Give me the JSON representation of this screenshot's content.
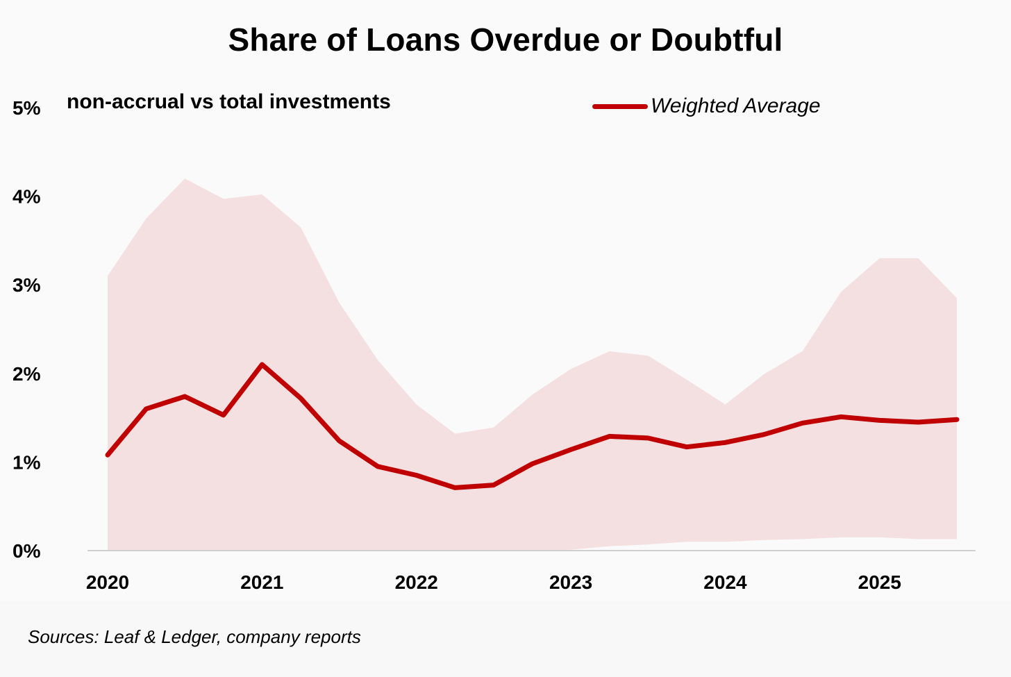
{
  "chart_data": {
    "type": "area",
    "title": "Share of Loans Overdue or Doubtful",
    "subtitle": "non-accrual vs total investments",
    "ylim": [
      0,
      5
    ],
    "y_ticks": [
      "0%",
      "1%",
      "2%",
      "3%",
      "4%",
      "5%"
    ],
    "x_ticks": [
      "2020",
      "2021",
      "2022",
      "2023",
      "2024",
      "2025"
    ],
    "x": [
      2020.0,
      2020.25,
      2020.5,
      2020.75,
      2021.0,
      2021.25,
      2021.5,
      2021.75,
      2022.0,
      2022.25,
      2022.5,
      2022.75,
      2023.0,
      2023.25,
      2023.5,
      2023.75,
      2024.0,
      2024.25,
      2024.5,
      2024.75,
      2025.0,
      2025.25,
      2025.5
    ],
    "series": [
      {
        "name": "Weighted Average",
        "kind": "line",
        "color": "#c00000",
        "values": [
          1.08,
          1.6,
          1.74,
          1.53,
          2.1,
          1.72,
          1.24,
          0.95,
          0.85,
          0.71,
          0.74,
          0.98,
          1.14,
          1.29,
          1.27,
          1.17,
          1.22,
          1.31,
          1.44,
          1.51,
          1.47,
          1.45,
          1.48
        ]
      },
      {
        "kind": "band",
        "color": "#f4e0e1",
        "upper": [
          3.1,
          3.75,
          4.2,
          3.97,
          4.02,
          3.65,
          2.8,
          2.15,
          1.65,
          1.32,
          1.39,
          1.76,
          2.05,
          2.25,
          2.2,
          1.93,
          1.65,
          1.99,
          2.25,
          2.92,
          3.3,
          3.3,
          2.85
        ],
        "lower": [
          0,
          0,
          0,
          0,
          0,
          0,
          0,
          0,
          0,
          0,
          0,
          0,
          0.01,
          0.05,
          0.07,
          0.1,
          0.1,
          0.12,
          0.13,
          0.15,
          0.15,
          0.13,
          0.13
        ]
      }
    ],
    "legend": "top-right",
    "grid": false,
    "source": "Sources: Leaf & Ledger, company reports"
  }
}
